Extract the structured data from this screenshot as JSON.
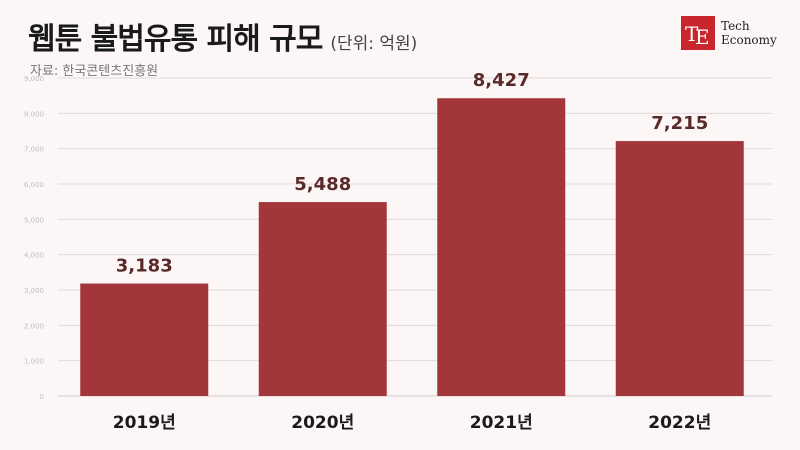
{
  "header": {
    "title": "웹툰 불법유통 피해 규모",
    "unit": "(단위: 억원)",
    "source": "자료: 한국콘텐츠진흥원"
  },
  "logo": {
    "line1": "Tech",
    "line2": "Economy",
    "color": "#c9252c"
  },
  "chart_data": {
    "type": "bar",
    "title": "웹툰 불법유통 피해 규모",
    "categories": [
      "2019년",
      "2020년",
      "2021년",
      "2022년"
    ],
    "values": [
      3183,
      5488,
      8427,
      7215
    ],
    "value_labels": [
      "3,183",
      "5,488",
      "8,427",
      "7,215"
    ],
    "yticks": [
      0,
      1000,
      2000,
      3000,
      4000,
      5000,
      6000,
      7000,
      8000,
      9000
    ],
    "ytick_labels": [
      "0",
      "1,000",
      "2,000",
      "3,000",
      "4,000",
      "5,000",
      "6,000",
      "7,000",
      "8,000",
      "9,000"
    ],
    "ylim": [
      0,
      9000
    ],
    "grid": true,
    "bar_color": "#a3363a",
    "label_color": "#5a2a2a"
  }
}
